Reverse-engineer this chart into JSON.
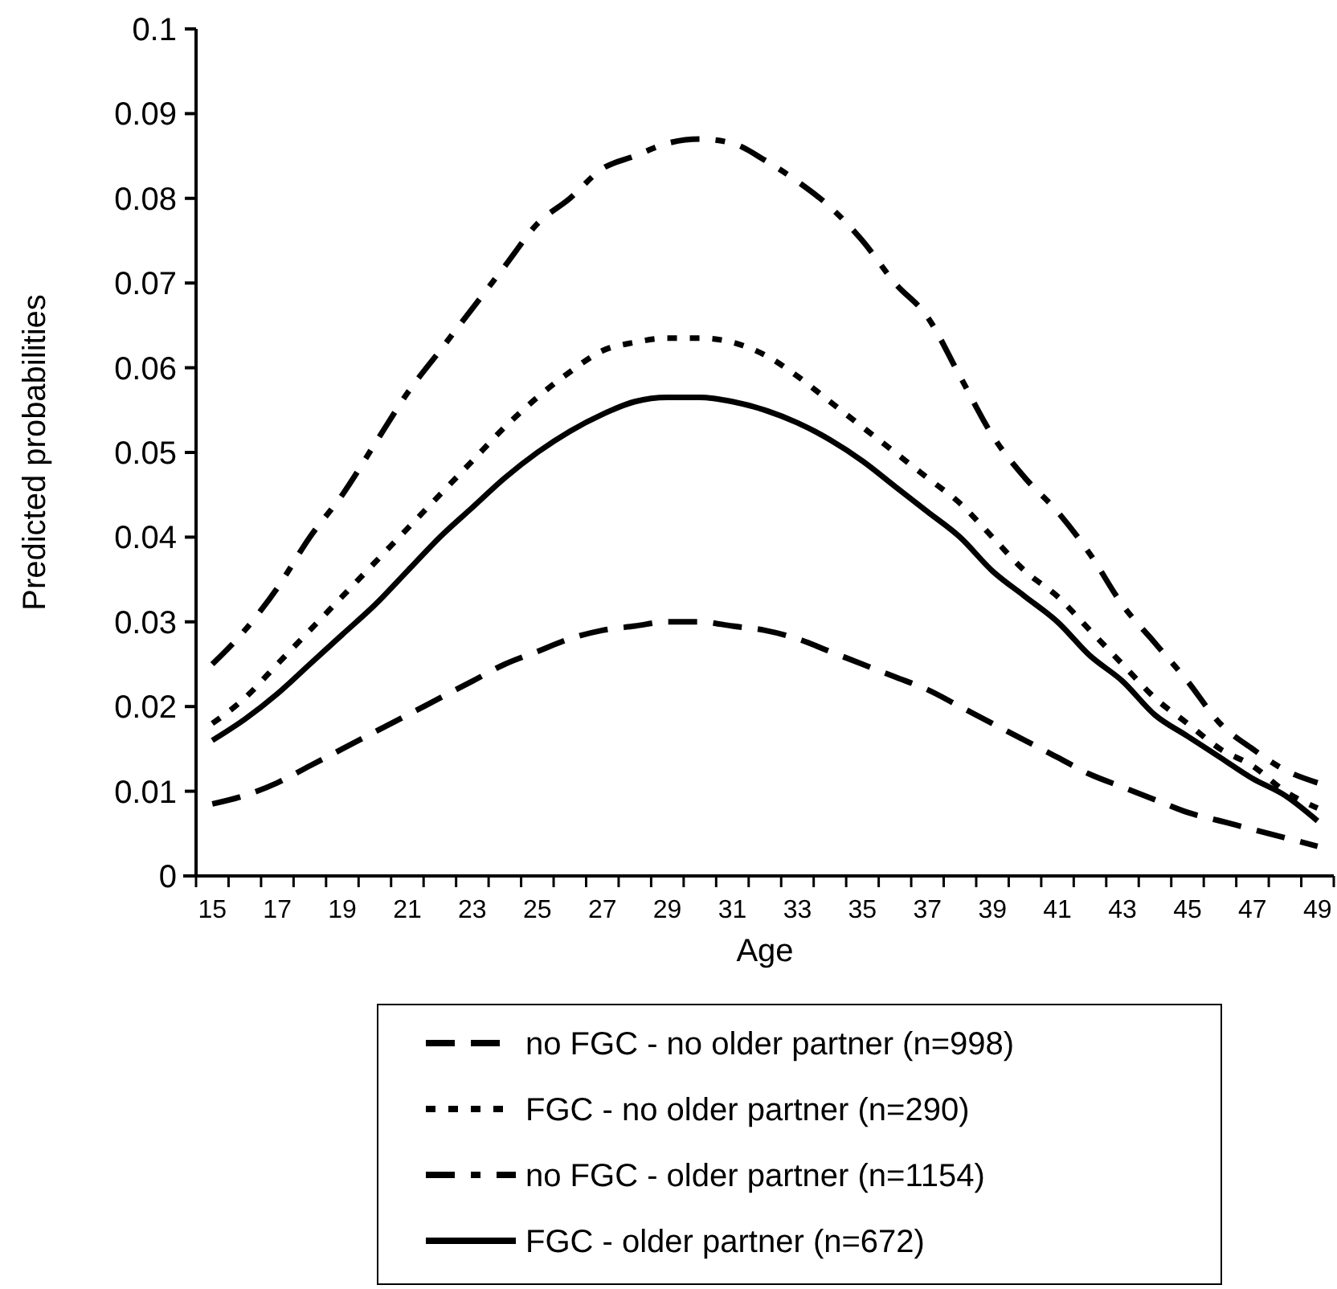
{
  "chart_data": {
    "type": "line",
    "xlabel": "Age",
    "ylabel": "Predicted probabilities",
    "categories": [
      "15",
      null,
      "17",
      null,
      "19",
      null,
      "21",
      null,
      "23",
      null,
      "25",
      null,
      "27",
      null,
      "29",
      null,
      "31",
      null,
      "33",
      null,
      "35",
      null,
      "37",
      null,
      "39",
      null,
      "41",
      null,
      "43",
      null,
      "45",
      null,
      "47",
      null,
      "49"
    ],
    "series": [
      {
        "name": "no FGC - no older partner (n=998)",
        "color": "#000000",
        "line_style": "dashed",
        "values": [
          0.0085,
          0.0095,
          0.011,
          0.013,
          0.015,
          0.017,
          0.019,
          0.021,
          0.023,
          0.025,
          0.0265,
          0.028,
          0.029,
          0.0295,
          0.03,
          0.03,
          0.0295,
          0.029,
          0.028,
          0.0265,
          0.025,
          0.0235,
          0.022,
          0.02,
          0.018,
          0.016,
          0.014,
          0.012,
          0.0105,
          0.009,
          0.0075,
          0.0065,
          0.0055,
          0.0045,
          0.0035
        ]
      },
      {
        "name": "FGC - no older partner (n=290)",
        "color": "#000000",
        "line_style": "dotted",
        "values": [
          0.018,
          0.021,
          0.025,
          0.029,
          0.033,
          0.037,
          0.041,
          0.045,
          0.049,
          0.053,
          0.0565,
          0.0595,
          0.062,
          0.063,
          0.0635,
          0.0635,
          0.063,
          0.0615,
          0.059,
          0.056,
          0.053,
          0.05,
          0.047,
          0.044,
          0.04,
          0.036,
          0.033,
          0.029,
          0.025,
          0.021,
          0.018,
          0.015,
          0.013,
          0.01,
          0.008
        ]
      },
      {
        "name": "no FGC - older partner (n=1154)",
        "color": "#000000",
        "line_style": "dashdot",
        "values": [
          0.025,
          0.029,
          0.034,
          0.04,
          0.045,
          0.051,
          0.057,
          0.062,
          0.067,
          0.072,
          0.077,
          0.08,
          0.0835,
          0.085,
          0.0865,
          0.087,
          0.0865,
          0.0845,
          0.082,
          0.079,
          0.075,
          0.07,
          0.066,
          0.059,
          0.052,
          0.047,
          0.043,
          0.038,
          0.032,
          0.0275,
          0.023,
          0.018,
          0.015,
          0.0125,
          0.011
        ]
      },
      {
        "name": "FGC - older partner (n=672)",
        "color": "#000000",
        "line_style": "solid",
        "values": [
          0.016,
          0.0185,
          0.0215,
          0.025,
          0.0285,
          0.032,
          0.036,
          0.04,
          0.0435,
          0.047,
          0.05,
          0.0525,
          0.0545,
          0.056,
          0.0565,
          0.0565,
          0.056,
          0.055,
          0.0535,
          0.0515,
          0.049,
          0.046,
          0.043,
          0.04,
          0.036,
          0.033,
          0.03,
          0.026,
          0.023,
          0.019,
          0.0165,
          0.014,
          0.0115,
          0.0095,
          0.0065
        ]
      }
    ],
    "ylim": [
      0,
      0.1
    ],
    "yticks": [
      0,
      0.01,
      0.02,
      0.03,
      0.04,
      0.05,
      0.06,
      0.07,
      0.08,
      0.09,
      0.1
    ],
    "grid": false,
    "legend": "bottom",
    "marker": "none"
  }
}
